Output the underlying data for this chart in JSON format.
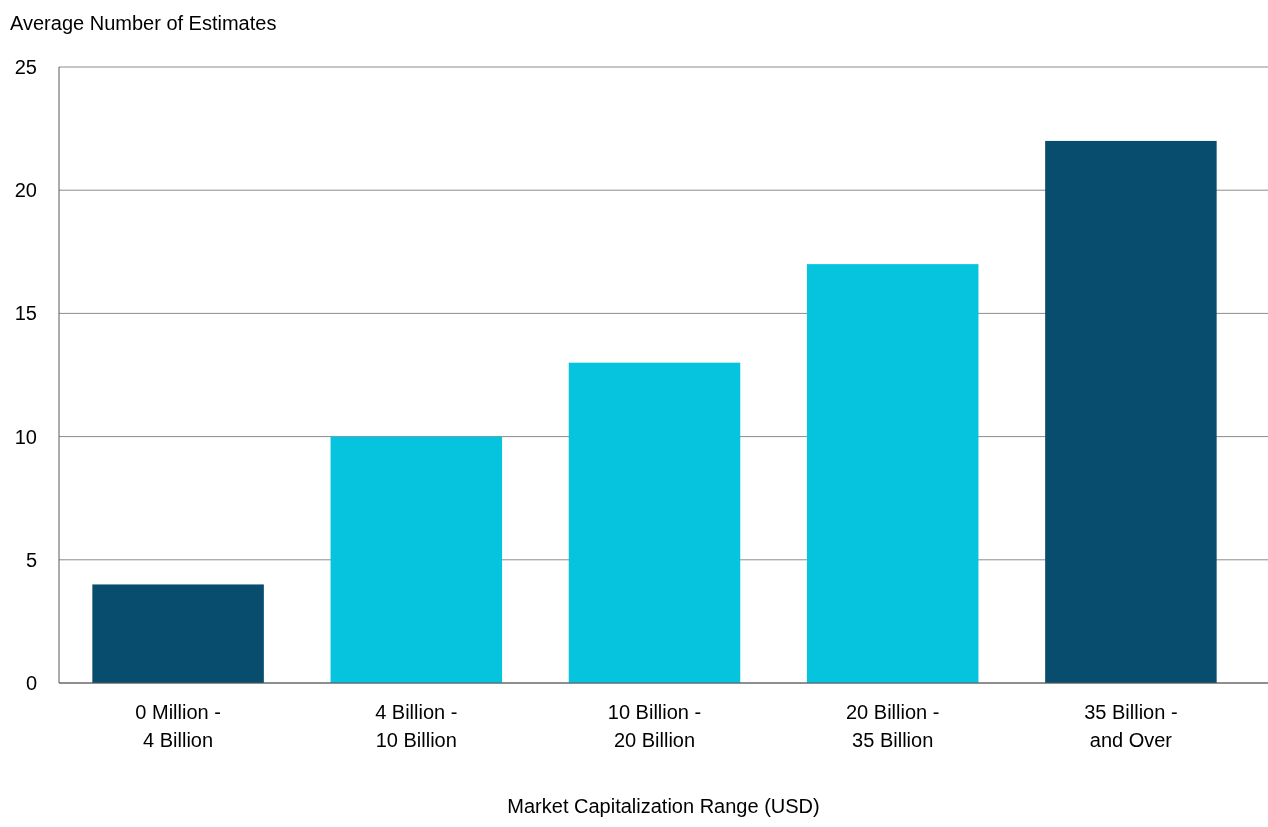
{
  "chart_data": {
    "type": "bar",
    "ylabel": "Average Number of Estimates",
    "xlabel": "Market Capitalization Range (USD)",
    "categories": [
      "0 Million - 4 Billion",
      "4 Billion - 10 Billion",
      "10 Billion - 20 Billion",
      "20 Billion - 35 Billion",
      "35 Billion - and Over"
    ],
    "values": [
      4,
      10,
      13,
      17,
      22
    ],
    "colors": [
      "#084c6e",
      "#06c3de",
      "#06c3de",
      "#06c3de",
      "#084c6e"
    ],
    "ylim": [
      0,
      25
    ],
    "yticks": [
      0,
      5,
      10,
      15,
      20,
      25
    ],
    "grid": "y"
  }
}
